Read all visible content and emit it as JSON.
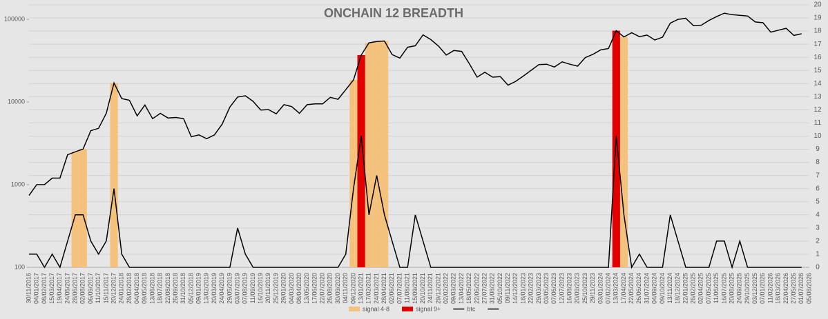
{
  "chart_data": {
    "type": "combo",
    "title": "ONCHAIN 12 BREADTH",
    "categories": [
      "30/11/2016",
      "04/01/2017",
      "08/02/2017",
      "15/03/2017",
      "19/04/2017",
      "24/05/2017",
      "28/06/2017",
      "02/08/2017",
      "06/09/2017",
      "11/10/2017",
      "15/11/2017",
      "20/12/2017",
      "24/01/2018",
      "28/02/2018",
      "04/04/2018",
      "09/05/2018",
      "13/06/2018",
      "18/07/2018",
      "22/08/2018",
      "26/09/2018",
      "31/10/2018",
      "05/12/2018",
      "09/01/2019",
      "13/02/2019",
      "20/03/2019",
      "24/04/2019",
      "29/05/2019",
      "03/07/2019",
      "07/08/2019",
      "11/09/2019",
      "16/10/2019",
      "20/11/2019",
      "25/12/2019",
      "29/01/2020",
      "04/03/2020",
      "08/04/2020",
      "13/05/2020",
      "17/06/2020",
      "22/07/2020",
      "26/08/2020",
      "30/09/2020",
      "04/11/2020",
      "09/12/2020",
      "13/01/2021",
      "17/02/2021",
      "24/03/2021",
      "28/04/2021",
      "02/06/2021",
      "07/07/2021",
      "11/08/2021",
      "15/09/2021",
      "20/10/2021",
      "24/11/2021",
      "29/12/2021",
      "02/02/2022",
      "09/03/2022",
      "13/04/2022",
      "18/05/2022",
      "22/06/2022",
      "27/07/2022",
      "31/08/2022",
      "05/10/2022",
      "09/11/2022",
      "14/12/2022",
      "18/01/2023",
      "22/02/2023",
      "29/03/2023",
      "03/05/2023",
      "07/06/2023",
      "12/07/2023",
      "16/08/2023",
      "20/09/2023",
      "25/10/2023",
      "29/11/2023",
      "03/01/2024",
      "07/02/2024",
      "13/03/2024",
      "17/04/2024",
      "22/05/2024",
      "26/06/2024",
      "31/07/2024",
      "04/09/2024",
      "09/10/2024",
      "13/11/2024",
      "18/12/2024",
      "22/01/2025",
      "26/02/2025",
      "02/04/2025",
      "07/05/2025",
      "11/06/2025",
      "16/07/2025",
      "20/08/2025",
      "24/09/2025",
      "29/10/2025",
      "03/12/2025",
      "07/01/2026",
      "11/02/2026",
      "18/03/2026",
      "22/04/2026",
      "27/05/2026",
      "01/07/2026",
      "05/08/2026"
    ],
    "series": [
      {
        "name": "signal 4-8",
        "color": "#f5c27e",
        "mark": "bar",
        "axis": "y",
        "values": [
          null,
          null,
          null,
          null,
          null,
          null,
          2500,
          2700,
          null,
          null,
          null,
          17000,
          null,
          null,
          null,
          null,
          null,
          null,
          null,
          null,
          null,
          null,
          null,
          null,
          null,
          null,
          null,
          null,
          null,
          null,
          null,
          null,
          null,
          null,
          null,
          null,
          null,
          null,
          null,
          null,
          null,
          null,
          18500,
          null,
          52000,
          54000,
          54800,
          null,
          null,
          null,
          null,
          null,
          null,
          null,
          null,
          null,
          null,
          null,
          null,
          null,
          null,
          null,
          null,
          null,
          null,
          null,
          null,
          null,
          null,
          null,
          null,
          null,
          null,
          null,
          null,
          null,
          null,
          61300,
          null,
          null,
          null,
          null,
          null,
          null,
          null,
          null,
          null,
          null,
          null,
          null,
          null,
          null,
          null,
          null,
          null,
          null,
          null,
          null,
          null,
          null,
          null,
          null
        ]
      },
      {
        "name": "signal 9+",
        "color": "#e00000",
        "mark": "bar",
        "axis": "y",
        "values": [
          null,
          null,
          null,
          null,
          null,
          null,
          null,
          null,
          null,
          null,
          null,
          null,
          null,
          null,
          null,
          null,
          null,
          null,
          null,
          null,
          null,
          null,
          null,
          null,
          null,
          null,
          null,
          null,
          null,
          null,
          null,
          null,
          null,
          null,
          null,
          null,
          null,
          null,
          null,
          null,
          null,
          null,
          null,
          37000,
          null,
          null,
          null,
          null,
          null,
          null,
          null,
          null,
          null,
          null,
          null,
          null,
          null,
          null,
          null,
          null,
          null,
          null,
          null,
          null,
          null,
          null,
          null,
          null,
          null,
          null,
          null,
          null,
          null,
          null,
          null,
          null,
          73000,
          null,
          null,
          null,
          null,
          null,
          null,
          null,
          null,
          null,
          null,
          null,
          null,
          null,
          null,
          null,
          null,
          null,
          null,
          null,
          null,
          null,
          null,
          null,
          null,
          null
        ]
      },
      {
        "name": "btc",
        "color": "#000000",
        "mark": "line",
        "axis": "y",
        "values": [
          740,
          1000,
          1000,
          1200,
          1200,
          2300,
          2500,
          2700,
          4500,
          4800,
          7300,
          17000,
          11000,
          10500,
          6800,
          9200,
          6300,
          7300,
          6400,
          6500,
          6300,
          3800,
          4000,
          3600,
          4000,
          5400,
          8700,
          11500,
          11900,
          10200,
          8000,
          8100,
          7200,
          9300,
          8800,
          7300,
          9300,
          9500,
          9500,
          11400,
          10800,
          14100,
          18500,
          37000,
          52000,
          54000,
          54800,
          37500,
          34000,
          46000,
          48000,
          65000,
          57000,
          47500,
          37000,
          42000,
          41000,
          29000,
          20000,
          22900,
          20000,
          20300,
          16000,
          17800,
          20700,
          24200,
          28400,
          28700,
          26500,
          30600,
          28700,
          27200,
          34500,
          37800,
          42800,
          44300,
          73000,
          61300,
          69000,
          61800,
          64600,
          56200,
          61000,
          90000,
          100000,
          103000,
          84000,
          85000,
          97000,
          108000,
          119000,
          114000,
          112000,
          110000,
          93000,
          91000,
          70000,
          74000,
          78000,
          64000,
          67000,
          null
        ]
      },
      {
        "color": "#000000",
        "mark": "line",
        "axis": "y2",
        "values": [
          1,
          1,
          0,
          1,
          0,
          2,
          4,
          4,
          2,
          1,
          2,
          6,
          1,
          0,
          0,
          0,
          0,
          0,
          0,
          0,
          0,
          0,
          0,
          0,
          0,
          0,
          0,
          3,
          1,
          0,
          0,
          0,
          0,
          0,
          0,
          0,
          0,
          0,
          0,
          0,
          0,
          1,
          6,
          10,
          4,
          7,
          4,
          2,
          0,
          0,
          4,
          2,
          0,
          0,
          0,
          0,
          0,
          0,
          0,
          0,
          0,
          0,
          0,
          0,
          0,
          0,
          0,
          0,
          0,
          0,
          0,
          0,
          0,
          0,
          0,
          0,
          10,
          4,
          0,
          1,
          0,
          0,
          0,
          4,
          2,
          0,
          0,
          0,
          0,
          2,
          2,
          0,
          2,
          0,
          0,
          0,
          0,
          0,
          0,
          0,
          0,
          null
        ]
      }
    ],
    "ylog": true,
    "ylim": [
      100,
      150000
    ],
    "yticks": [
      100,
      1000,
      10000,
      100000
    ],
    "y2lim": [
      0,
      20
    ],
    "y2ticks": [
      0,
      1,
      2,
      3,
      4,
      5,
      6,
      7,
      8,
      9,
      10,
      11,
      12,
      13,
      14,
      15,
      16,
      17,
      18,
      19,
      20
    ],
    "grid": true,
    "legend": "bottom"
  }
}
